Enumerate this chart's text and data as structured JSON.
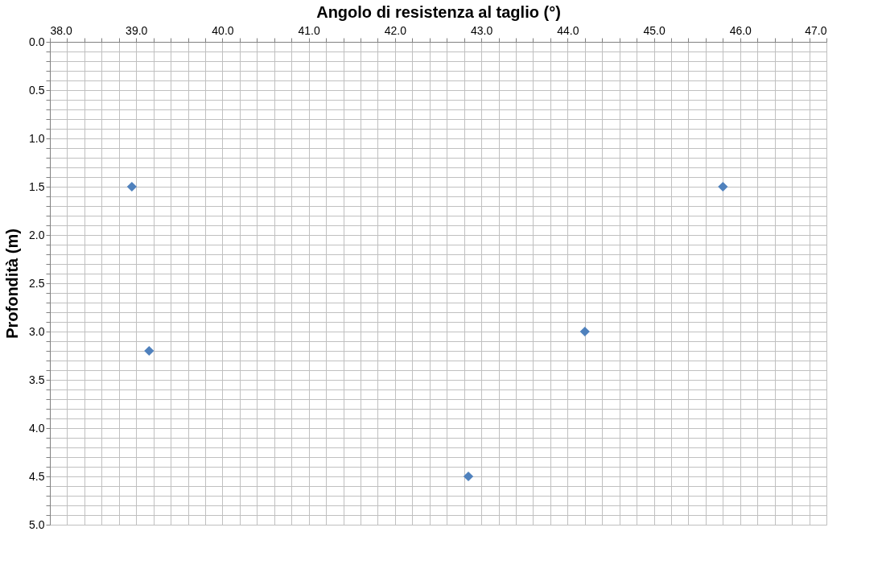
{
  "chart_data": {
    "type": "scatter",
    "xlabel": "Angolo di resistenza al taglio (°)",
    "ylabel": "Profondità (m)",
    "x": [
      38.95,
      39.15,
      42.85,
      44.2,
      45.8
    ],
    "series": [
      {
        "color": "#4f81bd",
        "values": [
          1.5,
          3.2,
          4.5,
          3.0,
          1.5
        ]
      }
    ],
    "marker": "diamond",
    "xlim": [
      38,
      47
    ],
    "ylim": [
      5,
      0
    ],
    "xticks": [
      {
        "value": 38,
        "label": "38.0"
      },
      {
        "value": 38.2,
        "label": null
      },
      {
        "value": 38.4,
        "label": null
      },
      {
        "value": 38.6,
        "label": null
      },
      {
        "value": 38.8,
        "label": null
      },
      {
        "value": 39,
        "label": "39.0"
      },
      {
        "value": 39.2,
        "label": null
      },
      {
        "value": 39.4,
        "label": null
      },
      {
        "value": 39.6,
        "label": null
      },
      {
        "value": 39.8,
        "label": null
      },
      {
        "value": 40,
        "label": "40.0"
      },
      {
        "value": 40.2,
        "label": null
      },
      {
        "value": 40.4,
        "label": null
      },
      {
        "value": 40.6,
        "label": null
      },
      {
        "value": 40.8,
        "label": null
      },
      {
        "value": 41,
        "label": "41.0"
      },
      {
        "value": 41.2,
        "label": null
      },
      {
        "value": 41.4,
        "label": null
      },
      {
        "value": 41.6,
        "label": null
      },
      {
        "value": 41.8,
        "label": null
      },
      {
        "value": 42,
        "label": "42.0"
      },
      {
        "value": 42.2,
        "label": null
      },
      {
        "value": 42.4,
        "label": null
      },
      {
        "value": 42.6,
        "label": null
      },
      {
        "value": 42.8,
        "label": null
      },
      {
        "value": 43,
        "label": "43.0"
      },
      {
        "value": 43.2,
        "label": null
      },
      {
        "value": 43.4,
        "label": null
      },
      {
        "value": 43.6,
        "label": null
      },
      {
        "value": 43.8,
        "label": null
      },
      {
        "value": 44,
        "label": "44.0"
      },
      {
        "value": 44.2,
        "label": null
      },
      {
        "value": 44.4,
        "label": null
      },
      {
        "value": 44.6,
        "label": null
      },
      {
        "value": 44.8,
        "label": null
      },
      {
        "value": 45,
        "label": "45.0"
      },
      {
        "value": 45.2,
        "label": null
      },
      {
        "value": 45.4,
        "label": null
      },
      {
        "value": 45.6,
        "label": null
      },
      {
        "value": 45.8,
        "label": null
      },
      {
        "value": 46,
        "label": "46.0"
      },
      {
        "value": 46.2,
        "label": null
      },
      {
        "value": 46.4,
        "label": null
      },
      {
        "value": 46.6,
        "label": null
      },
      {
        "value": 46.8,
        "label": null
      },
      {
        "value": 47,
        "label": "47.0"
      }
    ],
    "yticks": [
      {
        "value": 0,
        "label": "0.0"
      },
      {
        "value": 0.1,
        "label": null
      },
      {
        "value": 0.2,
        "label": null
      },
      {
        "value": 0.3,
        "label": null
      },
      {
        "value": 0.4,
        "label": null
      },
      {
        "value": 0.5,
        "label": "0.5"
      },
      {
        "value": 0.6,
        "label": null
      },
      {
        "value": 0.7,
        "label": null
      },
      {
        "value": 0.8,
        "label": null
      },
      {
        "value": 0.9,
        "label": null
      },
      {
        "value": 1,
        "label": "1.0"
      },
      {
        "value": 1.1,
        "label": null
      },
      {
        "value": 1.2,
        "label": null
      },
      {
        "value": 1.3,
        "label": null
      },
      {
        "value": 1.4,
        "label": null
      },
      {
        "value": 1.5,
        "label": "1.5"
      },
      {
        "value": 1.6,
        "label": null
      },
      {
        "value": 1.7,
        "label": null
      },
      {
        "value": 1.8,
        "label": null
      },
      {
        "value": 1.9,
        "label": null
      },
      {
        "value": 2,
        "label": "2.0"
      },
      {
        "value": 2.1,
        "label": null
      },
      {
        "value": 2.2,
        "label": null
      },
      {
        "value": 2.3,
        "label": null
      },
      {
        "value": 2.4,
        "label": null
      },
      {
        "value": 2.5,
        "label": "2.5"
      },
      {
        "value": 2.6,
        "label": null
      },
      {
        "value": 2.7,
        "label": null
      },
      {
        "value": 2.8,
        "label": null
      },
      {
        "value": 2.9,
        "label": null
      },
      {
        "value": 3,
        "label": "3.0"
      },
      {
        "value": 3.1,
        "label": null
      },
      {
        "value": 3.2,
        "label": null
      },
      {
        "value": 3.3,
        "label": null
      },
      {
        "value": 3.4,
        "label": null
      },
      {
        "value": 3.5,
        "label": "3.5"
      },
      {
        "value": 3.6,
        "label": null
      },
      {
        "value": 3.7,
        "label": null
      },
      {
        "value": 3.8,
        "label": null
      },
      {
        "value": 3.9,
        "label": null
      },
      {
        "value": 4,
        "label": "4.0"
      },
      {
        "value": 4.1,
        "label": null
      },
      {
        "value": 4.2,
        "label": null
      },
      {
        "value": 4.3,
        "label": null
      },
      {
        "value": 4.4,
        "label": null
      },
      {
        "value": 4.5,
        "label": "4.5"
      },
      {
        "value": 4.6,
        "label": null
      },
      {
        "value": 4.7,
        "label": null
      },
      {
        "value": 4.8,
        "label": null
      },
      {
        "value": 4.9,
        "label": null
      },
      {
        "value": 5,
        "label": "5.0"
      }
    ],
    "grid": true,
    "legend": false
  }
}
